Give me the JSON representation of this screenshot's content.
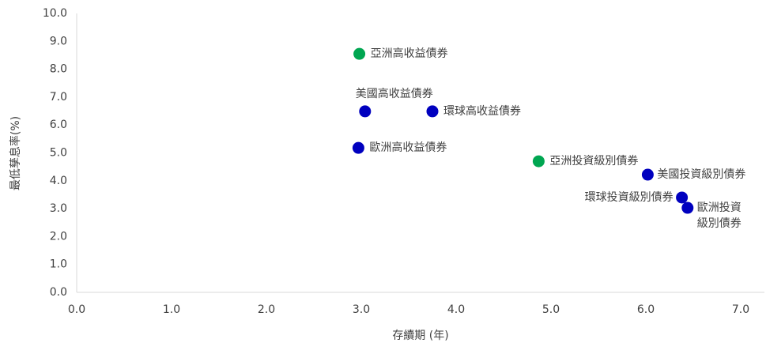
{
  "chart_data": {
    "type": "scatter",
    "x_label": "存續期 (年)",
    "y_label": "最低孳息率(%)",
    "labels": [
      "亞洲高收益債券",
      "美國高收益債券",
      "環球高收益債券",
      "歐洲高收益債券",
      "亞洲投資級別債券",
      "美國投資級別債券",
      "環球投資級別債券",
      "歐洲投資\n級別債券"
    ],
    "x": [
      2.98,
      3.04,
      3.75,
      2.97,
      4.87,
      6.02,
      6.38,
      6.44
    ],
    "y": [
      8.55,
      6.49,
      6.49,
      5.18,
      4.7,
      4.22,
      3.4,
      3.03
    ],
    "colors": [
      "#00a651",
      "#0000bf",
      "#0000bf",
      "#0000bf",
      "#00a651",
      "#0000bf",
      "#0000bf",
      "#0000bf"
    ],
    "xlim": [
      0,
      7.25
    ],
    "ylim": [
      0,
      10
    ],
    "xticks": [
      {
        "value": 0,
        "label": "0.0"
      },
      {
        "value": 1,
        "label": "1.0"
      },
      {
        "value": 2,
        "label": "2.0"
      },
      {
        "value": 3,
        "label": "3.0"
      },
      {
        "value": 4,
        "label": "4.0"
      },
      {
        "value": 5,
        "label": "5.0"
      },
      {
        "value": 6,
        "label": "6.0"
      },
      {
        "value": 7,
        "label": "7.0"
      }
    ],
    "yticks": [
      {
        "value": 0,
        "label": "0.0"
      },
      {
        "value": 1,
        "label": "1.0"
      },
      {
        "value": 2,
        "label": "2.0"
      },
      {
        "value": 3,
        "label": "3.0"
      },
      {
        "value": 4,
        "label": "4.0"
      },
      {
        "value": 5,
        "label": "5.0"
      },
      {
        "value": 6,
        "label": "6.0"
      },
      {
        "value": 7,
        "label": "7.0"
      },
      {
        "value": 8,
        "label": "8.0"
      },
      {
        "value": 9,
        "label": "9.0"
      },
      {
        "value": 10,
        "label": "10.0"
      }
    ],
    "grid": false
  }
}
